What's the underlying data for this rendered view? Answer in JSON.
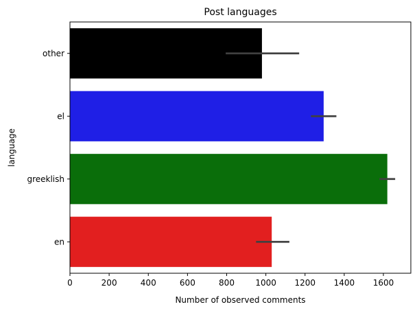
{
  "chart_data": {
    "type": "bar",
    "orientation": "horizontal",
    "title": "Post languages",
    "xlabel": "Number of observed comments",
    "ylabel": "language",
    "categories": [
      "other",
      "el",
      "greeklish",
      "en"
    ],
    "values": [
      980,
      1295,
      1620,
      1030
    ],
    "error_bars": [
      {
        "low": 795,
        "high": 1170
      },
      {
        "low": 1230,
        "high": 1360
      },
      {
        "low": 1580,
        "high": 1660
      },
      {
        "low": 950,
        "high": 1120
      }
    ],
    "colors": [
      "#000000",
      "#1f1fe6",
      "#0a6e0a",
      "#e21f1f"
    ],
    "errorbar_color": "#404040",
    "xlim": [
      0,
      1740
    ],
    "xticks": [
      0,
      200,
      400,
      600,
      800,
      1000,
      1200,
      1400,
      1600
    ],
    "grid": false,
    "legend": "none"
  }
}
